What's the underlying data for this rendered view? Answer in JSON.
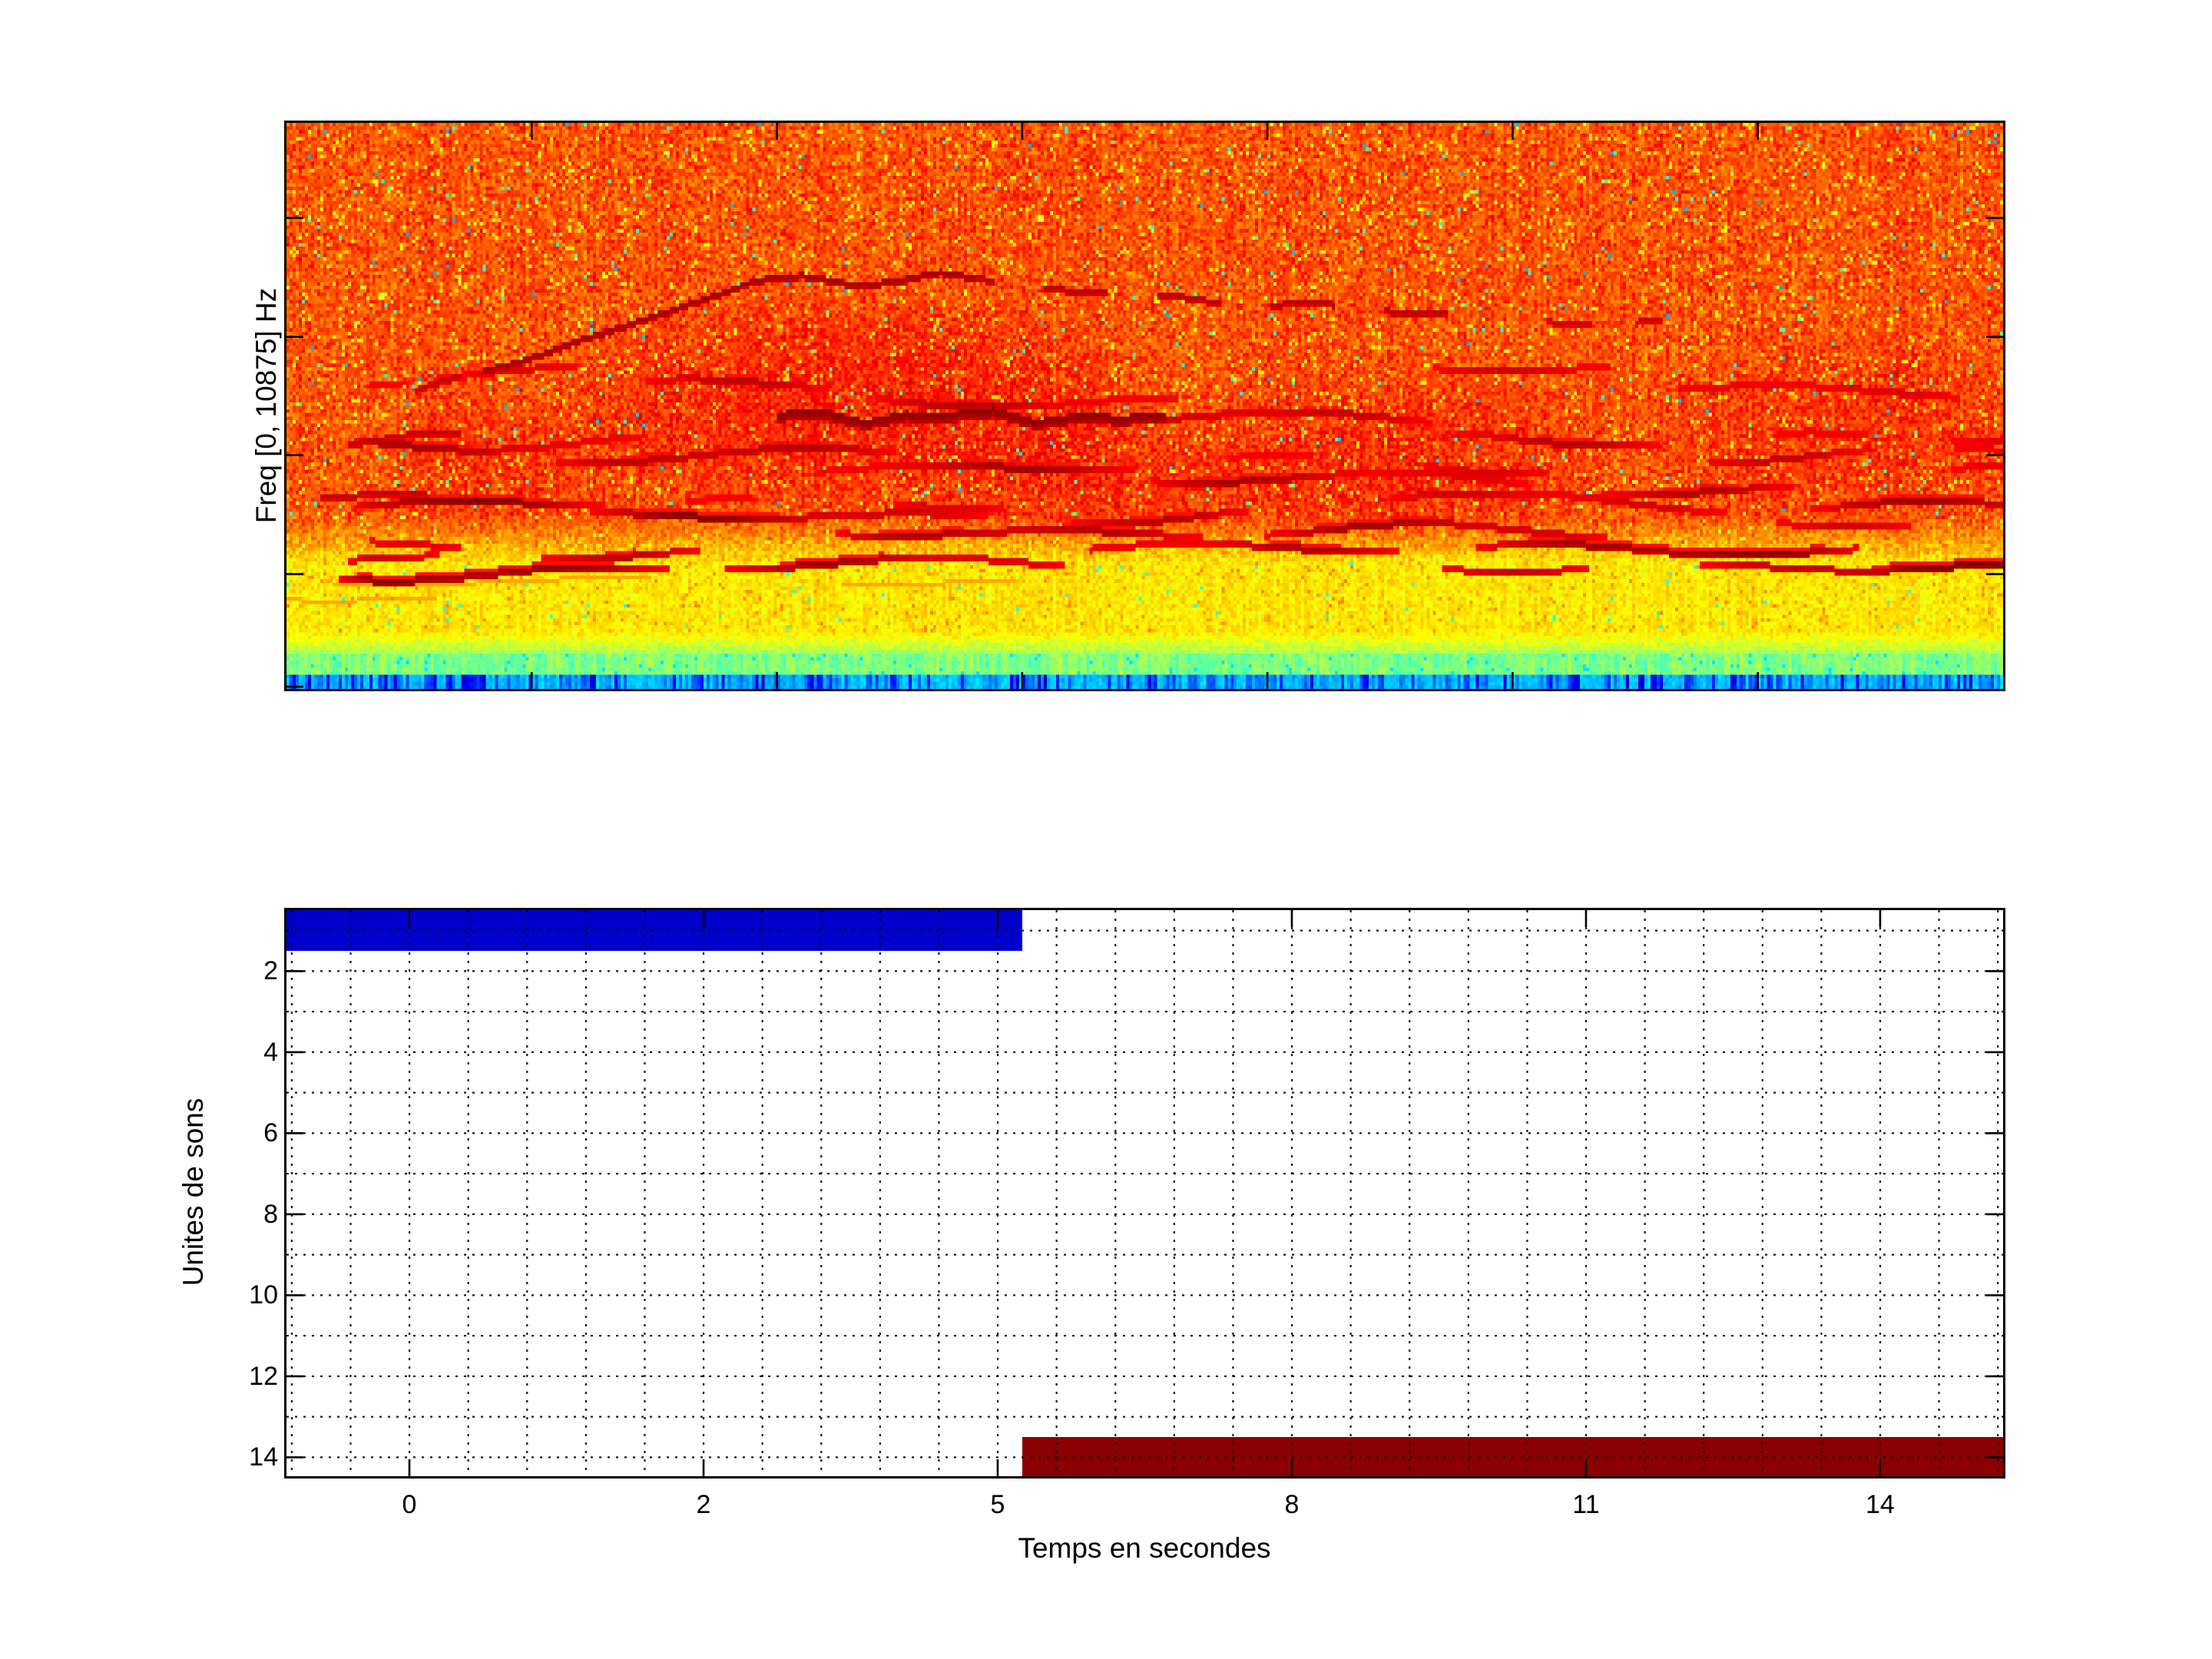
{
  "figure": {
    "background": "#ffffff"
  },
  "spectrogram": {
    "ylabel": "Freq [0, 10875] Hz",
    "colormap": "jet",
    "freq_range_hz": [
      0,
      10875
    ],
    "colors": {
      "noise_field": "#FF5500",
      "yellow_band": "#EEFF00",
      "green_strip": "#7CFF55",
      "cyan_strip": "#00AAFF",
      "blue_streaks": "#0022CC",
      "harmonic_traces": "#8B0000"
    }
  },
  "bars_plot": {
    "xlabel": "Temps en secondes",
    "ylabel": "Unites de sons",
    "x_tick_labels": [
      "0",
      "2",
      "5",
      "8",
      "11",
      "14"
    ],
    "y_tick_labels": [
      "2",
      "4",
      "6",
      "8",
      "10",
      "12",
      "14"
    ],
    "bar_blue_color": "#0000CC",
    "bar_darkred_color": "#8B0000"
  },
  "chart_data": [
    {
      "type": "heatmap",
      "subtype": "spectrogram",
      "title": "",
      "xlabel": "",
      "ylabel": "Freq [0, 10875] Hz",
      "ylim_hz": [
        0,
        10875
      ],
      "colormap": "jet",
      "x_ticks": "6 unlabeled ticks at 1/7..6/7 of width (top and bottom edges, pointing inward)",
      "y_ticks": "unlabeled ticks at 16.8%, 37.8%, 58.7%, 79.7% of height from top (left and right edges)",
      "content_bands_top_to_bottom": [
        {
          "band": "orange-red speckled noise field",
          "height_fraction": 0.7
        },
        {
          "band": "transition orange",
          "height_fraction": 0.08
        },
        {
          "band": "bright yellow speckled noise band",
          "height_fraction": 0.13
        },
        {
          "band": "yellow-green strip",
          "height_fraction": 0.06
        },
        {
          "band": "cyan strip with vertical blue streaks",
          "height_fraction": 0.03
        }
      ],
      "features": [
        "stack of ~13 wavy dark-red horizontal harmonic lines between 40% and 78% of height, intensity varying along time",
        "dark-red arc rising from (x~12%, y~43%) to (x~30%, y~27%) then wavy dashes rightward to x~68% at y~30-33%",
        "strong dark wavy line near (x 28-52%, y~51%)",
        "slightly darker red clouds around x~33% and x~60-95% in the harmonic region"
      ]
    },
    {
      "type": "bar",
      "orientation": "horizontal_gantt",
      "title": "",
      "xlabel": "Temps en secondes",
      "ylabel": "Unites de sons",
      "x_tick_labels": [
        0,
        2,
        5,
        8,
        11,
        14
      ],
      "y_ticks": [
        2,
        4,
        6,
        8,
        10,
        12,
        14
      ],
      "ylim": [
        0.5,
        14.5
      ],
      "y_axis_direction": "increasing downward",
      "grid": "black dotted; vertical lines at 5 subdivisions per labeled tick, horizontal line at every integer unit",
      "bars": [
        {
          "unit": 1,
          "start_s": -0.8,
          "end_s": 5.25,
          "color": "#0000CC",
          "note": "starts at left plot edge"
        },
        {
          "unit": 14,
          "start_s": 5.25,
          "end_s": 15.2,
          "color": "#8B0000",
          "note": "ends at right plot edge"
        }
      ]
    }
  ]
}
